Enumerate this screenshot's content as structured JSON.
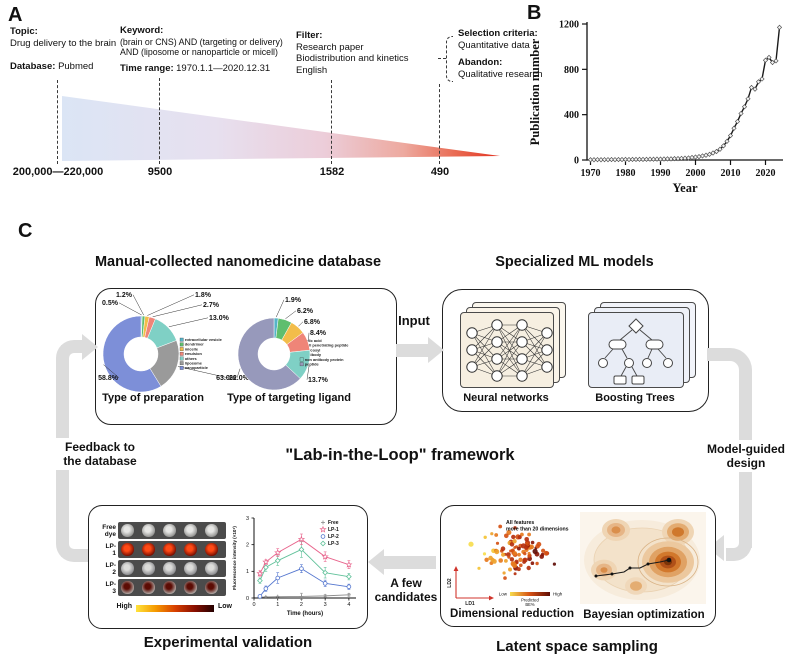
{
  "panelA": {
    "label": "A",
    "topic_heading": "Topic:",
    "topic": "Drug delivery to the brain",
    "database_heading": "Database:",
    "database_value": "Pubmed",
    "keyword_heading": "Keyword:",
    "keyword_line1": "(brain or CNS) AND (targeting or delivery)",
    "keyword_line2": "AND (liposome or nanoparticle or micell)",
    "time_heading": "Time range:",
    "time_value": "1970.1.1—2020.12.31",
    "filter_heading": "Filter:",
    "filter_items": [
      "Research paper",
      "Biodistribution and kinetics",
      "English"
    ],
    "selection_heading": "Selection criteria:",
    "selection_value": "Quantitative data",
    "abandon_heading": "Abandon:",
    "abandon_value": "Qualitative research",
    "counts": [
      "200,000—220,000",
      "9500",
      "1582",
      "490"
    ]
  },
  "panelB": {
    "label": "B"
  },
  "panelC": {
    "label": "C",
    "db_title": "Manual-collected nanomedicine database",
    "ml_title": "Specialized ML models",
    "nn_label": "Neural networks",
    "trees_label": "Boosting Trees",
    "input_label": "Input",
    "center_title": "\"Lab-in-the-Loop\" framework",
    "feedback_line1": "Feedback to",
    "feedback_line2": "the database",
    "model_guided_line1": "Model-guided",
    "model_guided_line2": "design",
    "few_candidates_line1": "A few",
    "few_candidates_line2": "candidates",
    "experimental_title": "Experimental validation",
    "latent_title": "Latent space sampling",
    "dimred_label": "Dimensional reduction",
    "bayes_label": "Bayesian optimization",
    "mice": {
      "rows": [
        {
          "label": "Free\ndye",
          "blob_inner": "#e6e6e4",
          "blob_outer": "#8d8d8b"
        },
        {
          "label": "LP-\n1",
          "blob_inner": "#ff4a16",
          "blob_outer": "#6e0a00"
        },
        {
          "label": "LP-\n2",
          "blob_inner": "#dcdcda",
          "blob_outer": "#86868a"
        },
        {
          "label": "LP-\n3",
          "blob_inner": "#5c0c04",
          "blob_outer": "#b5b1ad"
        }
      ],
      "scale_high": "High",
      "scale_low": "Low",
      "scale_colors": [
        "#ffe33c",
        "#f59a00",
        "#d84000",
        "#8a0f00",
        "#240000"
      ]
    }
  },
  "chart_data": [
    {
      "id": "publication_trend",
      "type": "line",
      "xlabel": "Year",
      "ylabel": "Publication number",
      "xlim": [
        1969,
        2025
      ],
      "ylim": [
        0,
        1200
      ],
      "xticks": [
        1970,
        1980,
        1990,
        2000,
        2010,
        2020
      ],
      "yticks": [
        0,
        400,
        800,
        1200
      ],
      "marker": "diamond",
      "x": [
        1970,
        1971,
        1972,
        1973,
        1974,
        1975,
        1976,
        1977,
        1978,
        1979,
        1980,
        1981,
        1982,
        1983,
        1984,
        1985,
        1986,
        1987,
        1988,
        1989,
        1990,
        1991,
        1992,
        1993,
        1994,
        1995,
        1996,
        1997,
        1998,
        1999,
        2000,
        2001,
        2002,
        2003,
        2004,
        2005,
        2006,
        2007,
        2008,
        2009,
        2010,
        2011,
        2012,
        2013,
        2014,
        2015,
        2016,
        2017,
        2018,
        2019,
        2020,
        2021,
        2022,
        2023,
        2024
      ],
      "y": [
        2,
        2,
        3,
        2,
        3,
        3,
        4,
        3,
        4,
        4,
        5,
        4,
        5,
        5,
        6,
        5,
        6,
        7,
        7,
        8,
        8,
        9,
        10,
        10,
        12,
        12,
        14,
        16,
        18,
        22,
        26,
        30,
        36,
        42,
        50,
        62,
        75,
        95,
        125,
        165,
        215,
        280,
        340,
        410,
        470,
        540,
        640,
        625,
        690,
        715,
        880,
        905,
        860,
        875,
        1170
      ]
    },
    {
      "id": "type_of_preparation",
      "type": "donut",
      "title": "Type of preparation",
      "slices": [
        {
          "label": "extracellular vesicle",
          "value": 0.5,
          "color": "#56b4c8"
        },
        {
          "label": "dendrimer",
          "value": 1.2,
          "color": "#5fbe6e"
        },
        {
          "label": "micelle",
          "value": 1.8,
          "color": "#f2bd4a"
        },
        {
          "label": "emulsion",
          "value": 2.7,
          "color": "#ef8578"
        },
        {
          "label": "others",
          "value": 13.0,
          "color": "#7fd0c5"
        },
        {
          "label": "liposome",
          "value": 22.0,
          "color": "#9a9a9a"
        },
        {
          "label": "nanoparticle",
          "value": 58.8,
          "color": "#7d8fd8"
        }
      ]
    },
    {
      "id": "type_of_targeting_ligand",
      "type": "donut",
      "title": "Type of targeting ligand",
      "slices": [
        {
          "label": "folic acid",
          "value": 1.9,
          "color": "#56b4c8"
        },
        {
          "label": "cell penetrating peptide",
          "value": 6.2,
          "color": "#5fbe6e"
        },
        {
          "label": "glycosyl",
          "value": 6.8,
          "color": "#f2bd4a"
        },
        {
          "label": "antibody",
          "value": 8.4,
          "color": "#ef8578"
        },
        {
          "label": "non antibody protein",
          "value": 13.7,
          "color": "#7fd0c5"
        },
        {
          "label": "peptide",
          "value": 63.0,
          "color": "#9799bb"
        }
      ]
    },
    {
      "id": "fluorescence_kinetics",
      "type": "line",
      "xlabel": "Time (hours)",
      "ylabel": "Fluorescence intensity (×10⁷)",
      "xlim": [
        0,
        4.3
      ],
      "ylim": [
        0,
        3
      ],
      "xticks": [
        0,
        1,
        2,
        3,
        4
      ],
      "yticks": [
        0,
        1,
        2,
        3
      ],
      "x": [
        0.25,
        0.5,
        1,
        2,
        3,
        4
      ],
      "series": [
        {
          "name": "Free",
          "color": "#8c8c8c",
          "marker": "plus",
          "y": [
            0.03,
            0.04,
            0.05,
            0.06,
            0.08,
            0.12
          ],
          "err": [
            0.02,
            0.02,
            0.02,
            0.12,
            0.04,
            0.05
          ]
        },
        {
          "name": "LP-1",
          "color": "#e8648c",
          "marker": "star",
          "y": [
            0.92,
            1.35,
            1.7,
            2.2,
            1.55,
            1.25
          ],
          "err": [
            0.1,
            0.08,
            0.15,
            0.2,
            0.18,
            0.15
          ]
        },
        {
          "name": "LP-2",
          "color": "#5577cf",
          "marker": "circle",
          "y": [
            0.06,
            0.35,
            0.75,
            1.1,
            0.55,
            0.42
          ],
          "err": [
            0.04,
            0.1,
            0.2,
            0.15,
            0.12,
            0.1
          ]
        },
        {
          "name": "LP-3",
          "color": "#62c29b",
          "marker": "diamond",
          "y": [
            0.65,
            1.15,
            1.4,
            1.82,
            0.95,
            0.8
          ],
          "err": [
            0.1,
            0.15,
            0.18,
            0.3,
            0.2,
            0.12
          ]
        }
      ]
    },
    {
      "id": "dimensional_reduction_scatter",
      "type": "scatter",
      "xlabel": "LD1",
      "ylabel": "LD2",
      "annotation_line1": "All features",
      "annotation_line2": "more than 20 dimensions",
      "colorbar_low": "Low",
      "colorbar_high": "High",
      "colorbar_title_line1": "Predicted",
      "colorbar_title_line2": "BE%",
      "n_points": 95,
      "note": "illustrative point cloud colored yellow (low) to dark red (high)"
    },
    {
      "id": "bayesian_optimization",
      "type": "contour",
      "note": "orange density contours with a black sampling trajectory ending at the optimum"
    }
  ]
}
